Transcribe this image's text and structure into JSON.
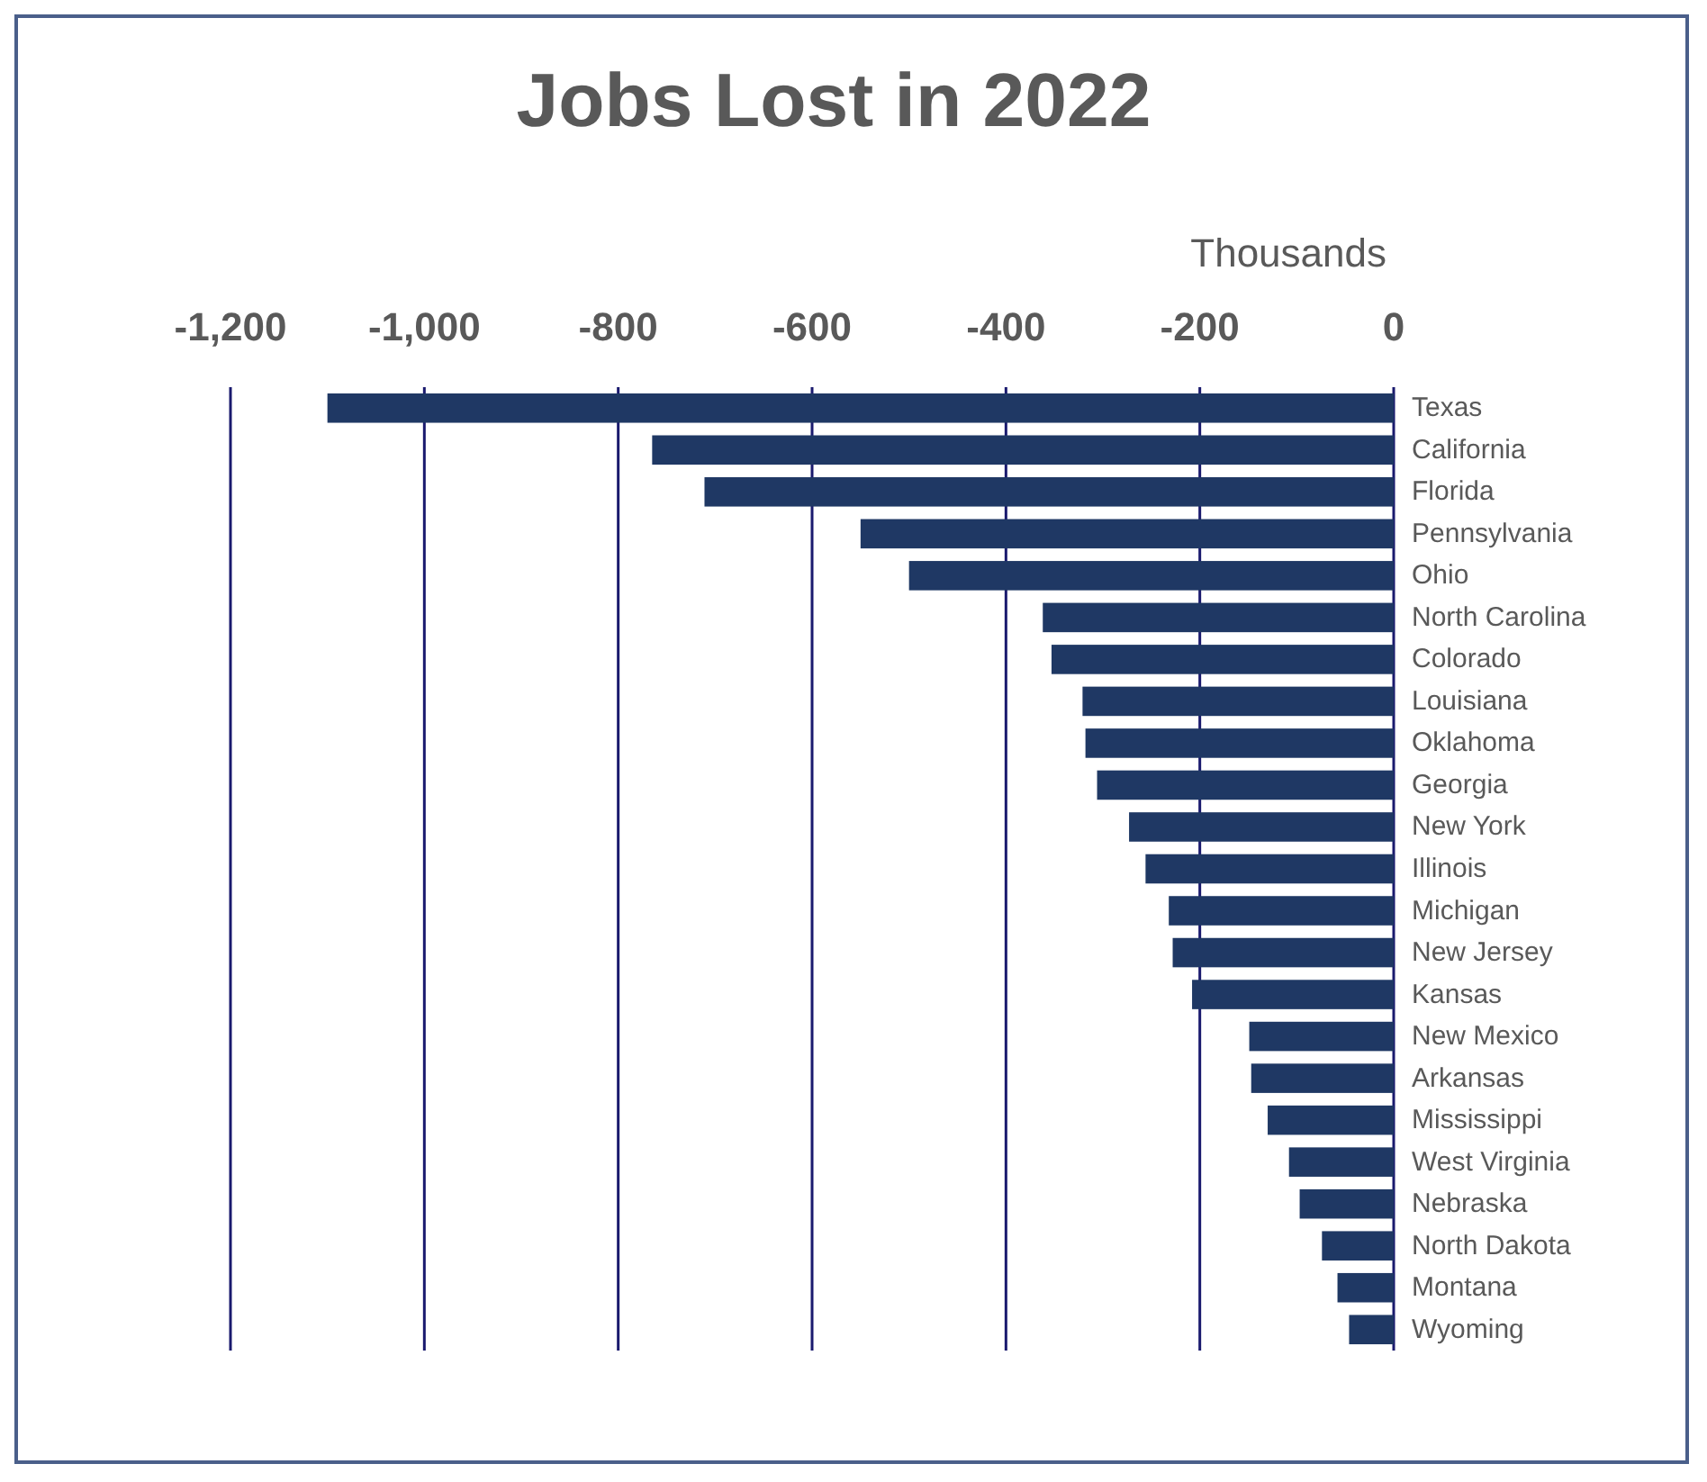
{
  "chart_data": {
    "type": "bar",
    "orientation": "horizontal",
    "title": "Jobs Lost in 2022",
    "xlabel": "Thousands",
    "categories": [
      "Texas",
      "California",
      "Florida",
      "Pennsylvania",
      "Ohio",
      "North Carolina",
      "Colorado",
      "Louisiana",
      "Oklahoma",
      "Georgia",
      "New York",
      "Illinois",
      "Michigan",
      "New Jersey",
      "Kansas",
      "New Mexico",
      "Arkansas",
      "Mississippi",
      "West Virginia",
      "Nebraska",
      "North Dakota",
      "Montana",
      "Wyoming"
    ],
    "values": [
      -1100,
      -765,
      -711,
      -550,
      -500,
      -362,
      -353,
      -321,
      -318,
      -306,
      -273,
      -256,
      -232,
      -228,
      -208,
      -149,
      -147,
      -130,
      -108,
      -97,
      -74,
      -58,
      -46
    ],
    "color": "#1f3864",
    "xlim": [
      -1200,
      0
    ],
    "xticks": [
      {
        "value": -1200,
        "label": "-1,200"
      },
      {
        "value": -1000,
        "label": "-1,000"
      },
      -800,
      -600,
      -400,
      -200,
      0
    ],
    "grid": "x"
  }
}
